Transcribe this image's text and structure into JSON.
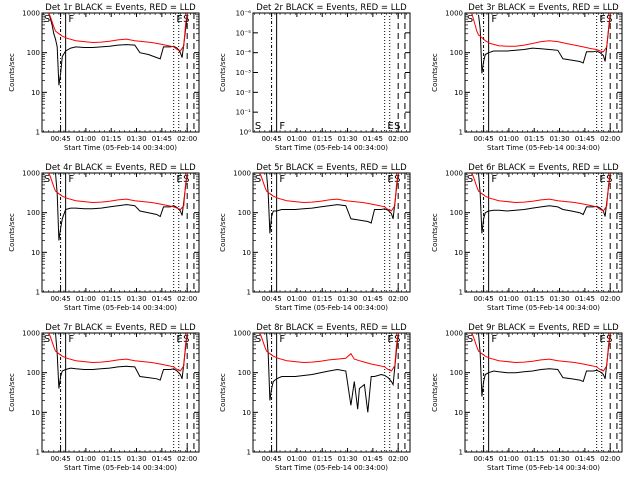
{
  "page": {
    "background": "#ffffff",
    "colors": {
      "events": "#000000",
      "lld": "#ff0000",
      "axis": "#000000"
    }
  },
  "axes": {
    "xticks": [
      "00:45",
      "01:00",
      "01:15",
      "01:30",
      "01:45",
      "02:00"
    ],
    "xlabel": "Start Time (05-Feb-14 00:34:00)",
    "ylabel": "Counts/sec",
    "yticks_log": [
      "1",
      "10",
      "100",
      "1000"
    ],
    "yticks_empty": [
      "10⁰",
      "10⁻¹",
      "10⁻²",
      "10⁻³",
      "10⁻⁴",
      "10⁻⁵",
      "10⁻⁶"
    ]
  },
  "markers": {
    "S": "S",
    "F": "F",
    "E": "E"
  },
  "chart_data": [
    {
      "type": "line",
      "title": "Det 1r BLACK = Events, RED = LLD",
      "ylabel": "Counts/sec",
      "xlabel": "Start Time (05-Feb-14 00:34:00)",
      "yscale": "log",
      "ylim": [
        1,
        1000
      ],
      "xlim_minutes": [
        0,
        93
      ],
      "series": [
        {
          "name": "Events",
          "x": [
            4,
            6,
            7,
            8,
            9,
            10,
            11,
            12,
            14,
            17,
            20,
            25,
            30,
            35,
            40,
            45,
            50,
            55,
            58,
            63,
            68,
            70,
            72,
            76,
            78,
            80,
            82,
            83,
            86
          ],
          "y": [
            1000,
            500,
            300,
            220,
            140,
            15,
            30,
            80,
            110,
            130,
            140,
            135,
            135,
            140,
            145,
            155,
            160,
            155,
            100,
            90,
            75,
            70,
            140,
            140,
            145,
            130,
            100,
            75,
            800
          ]
        },
        {
          "name": "LLD",
          "x": [
            4,
            5,
            6,
            7,
            8,
            10,
            12,
            15,
            20,
            25,
            30,
            35,
            40,
            45,
            50,
            55,
            60,
            65,
            70,
            75,
            78,
            80,
            82,
            84,
            85,
            86
          ],
          "y": [
            1000,
            800,
            600,
            450,
            350,
            300,
            260,
            230,
            200,
            190,
            180,
            185,
            195,
            210,
            220,
            200,
            190,
            180,
            165,
            150,
            140,
            120,
            110,
            150,
            500,
            1000
          ]
        }
      ]
    },
    {
      "type": "line",
      "title": "Det 2r BLACK = Events, RED = LLD",
      "ylabel": "Counts/sec",
      "xlabel": "Start Time (05-Feb-14 00:34:00)",
      "yscale": "log",
      "ylim": [
        1e-06,
        1
      ],
      "xlim_minutes": [
        0,
        93
      ],
      "series": []
    },
    {
      "type": "line",
      "title": "Det 3r BLACK = Events, RED = LLD",
      "ylabel": "Counts/sec",
      "xlabel": "Start Time (05-Feb-14 00:34:00)",
      "yscale": "log",
      "ylim": [
        1,
        1000
      ],
      "xlim_minutes": [
        0,
        93
      ],
      "series": [
        {
          "name": "Events",
          "x": [
            8,
            9,
            10,
            11,
            12,
            14,
            17,
            20,
            25,
            30,
            35,
            40,
            45,
            50,
            55,
            58,
            63,
            68,
            70,
            72,
            76,
            78,
            80,
            82,
            83,
            86
          ],
          "y": [
            900,
            400,
            30,
            60,
            90,
            100,
            110,
            110,
            110,
            115,
            120,
            130,
            125,
            120,
            115,
            70,
            65,
            60,
            55,
            105,
            105,
            110,
            100,
            85,
            60,
            900
          ]
        },
        {
          "name": "LLD",
          "x": [
            4,
            5,
            6,
            7,
            8,
            10,
            12,
            15,
            20,
            25,
            30,
            35,
            40,
            45,
            50,
            55,
            60,
            65,
            70,
            75,
            78,
            80,
            82,
            84,
            85,
            86
          ],
          "y": [
            1000,
            700,
            500,
            350,
            280,
            240,
            200,
            170,
            150,
            145,
            145,
            155,
            170,
            190,
            200,
            190,
            170,
            155,
            140,
            125,
            120,
            110,
            105,
            140,
            400,
            1000
          ]
        }
      ]
    },
    {
      "type": "line",
      "title": "Det 4r BLACK = Events, RED = LLD",
      "ylabel": "Counts/sec",
      "xlabel": "Start Time (05-Feb-14 00:34:00)",
      "yscale": "log",
      "ylim": [
        1,
        1000
      ],
      "xlim_minutes": [
        0,
        93
      ],
      "series": [
        {
          "name": "Events",
          "x": [
            8,
            9,
            10,
            11,
            12,
            14,
            17,
            20,
            25,
            30,
            35,
            40,
            45,
            50,
            55,
            58,
            63,
            68,
            70,
            72,
            76,
            78,
            80,
            82,
            83,
            86
          ],
          "y": [
            1000,
            300,
            20,
            40,
            70,
            120,
            130,
            130,
            125,
            125,
            130,
            140,
            150,
            160,
            150,
            110,
            100,
            90,
            80,
            140,
            140,
            150,
            135,
            110,
            85,
            1000
          ]
        },
        {
          "name": "LLD",
          "x": [
            4,
            5,
            6,
            7,
            8,
            10,
            12,
            15,
            20,
            25,
            30,
            35,
            40,
            45,
            50,
            55,
            60,
            65,
            70,
            75,
            78,
            80,
            82,
            84,
            85,
            86
          ],
          "y": [
            1000,
            800,
            600,
            450,
            350,
            300,
            260,
            230,
            200,
            190,
            180,
            185,
            195,
            210,
            220,
            200,
            190,
            180,
            165,
            150,
            140,
            130,
            120,
            150,
            500,
            1000
          ]
        }
      ]
    },
    {
      "type": "line",
      "title": "Det 5r BLACK = Events, RED = LLD",
      "ylabel": "Counts/sec",
      "xlabel": "Start Time (05-Feb-14 00:34:00)",
      "yscale": "log",
      "ylim": [
        1,
        1000
      ],
      "xlim_minutes": [
        0,
        93
      ],
      "series": [
        {
          "name": "Events",
          "x": [
            8,
            9,
            10,
            11,
            12,
            14,
            17,
            20,
            25,
            30,
            35,
            40,
            45,
            50,
            55,
            58,
            63,
            68,
            70,
            72,
            76,
            78,
            80,
            82,
            83,
            86
          ],
          "y": [
            1000,
            300,
            30,
            80,
            110,
            110,
            120,
            120,
            120,
            125,
            130,
            140,
            150,
            160,
            150,
            70,
            65,
            60,
            55,
            120,
            120,
            125,
            115,
            95,
            70,
            1000
          ]
        },
        {
          "name": "LLD",
          "x": [
            4,
            5,
            6,
            7,
            8,
            10,
            12,
            15,
            20,
            25,
            30,
            35,
            40,
            45,
            50,
            55,
            60,
            65,
            70,
            75,
            78,
            80,
            82,
            84,
            85,
            86
          ],
          "y": [
            1000,
            800,
            600,
            450,
            350,
            300,
            260,
            230,
            200,
            190,
            180,
            185,
            195,
            210,
            220,
            200,
            190,
            180,
            165,
            150,
            140,
            120,
            110,
            150,
            500,
            1000
          ]
        }
      ]
    },
    {
      "type": "line",
      "title": "Det 6r BLACK = Events, RED = LLD",
      "ylabel": "Counts/sec",
      "xlabel": "Start Time (05-Feb-14 00:34:00)",
      "yscale": "log",
      "ylim": [
        1,
        1000
      ],
      "xlim_minutes": [
        0,
        93
      ],
      "series": [
        {
          "name": "Events",
          "x": [
            8,
            9,
            10,
            11,
            12,
            14,
            17,
            20,
            25,
            30,
            35,
            40,
            45,
            50,
            55,
            58,
            63,
            68,
            70,
            72,
            76,
            78,
            80,
            82,
            83,
            86
          ],
          "y": [
            1000,
            300,
            30,
            70,
            100,
            110,
            115,
            115,
            110,
            115,
            120,
            130,
            140,
            150,
            140,
            120,
            110,
            100,
            90,
            140,
            140,
            145,
            130,
            110,
            80,
            1000
          ]
        },
        {
          "name": "LLD",
          "x": [
            4,
            5,
            6,
            7,
            8,
            10,
            12,
            15,
            20,
            25,
            30,
            35,
            40,
            45,
            50,
            55,
            60,
            65,
            70,
            75,
            78,
            80,
            82,
            84,
            85,
            86
          ],
          "y": [
            1000,
            800,
            600,
            450,
            350,
            300,
            260,
            230,
            200,
            190,
            180,
            185,
            195,
            210,
            220,
            200,
            190,
            180,
            165,
            150,
            140,
            120,
            110,
            150,
            500,
            1000
          ]
        }
      ]
    },
    {
      "type": "line",
      "title": "Det 7r BLACK = Events, RED = LLD",
      "ylabel": "Counts/sec",
      "xlabel": "Start Time (05-Feb-14 00:34:00)",
      "yscale": "log",
      "ylim": [
        1,
        1000
      ],
      "xlim_minutes": [
        0,
        93
      ],
      "series": [
        {
          "name": "Events",
          "x": [
            8,
            9,
            10,
            11,
            12,
            14,
            17,
            20,
            25,
            30,
            35,
            40,
            45,
            50,
            55,
            58,
            63,
            68,
            70,
            72,
            76,
            78,
            80,
            82,
            83,
            86
          ],
          "y": [
            1000,
            300,
            40,
            80,
            110,
            120,
            130,
            125,
            120,
            120,
            125,
            130,
            140,
            145,
            140,
            80,
            75,
            70,
            65,
            120,
            120,
            125,
            110,
            90,
            70,
            1000
          ]
        },
        {
          "name": "LLD",
          "x": [
            4,
            5,
            6,
            7,
            8,
            10,
            12,
            15,
            20,
            25,
            30,
            35,
            40,
            45,
            50,
            55,
            60,
            65,
            70,
            75,
            78,
            80,
            82,
            84,
            85,
            86
          ],
          "y": [
            1000,
            800,
            600,
            450,
            350,
            300,
            260,
            230,
            200,
            190,
            180,
            185,
            195,
            210,
            220,
            200,
            190,
            180,
            165,
            150,
            140,
            120,
            110,
            150,
            500,
            1000
          ]
        }
      ]
    },
    {
      "type": "line",
      "title": "Det 8r BLACK = Events, RED = LLD",
      "ylabel": "Counts/sec",
      "xlabel": "Start Time (05-Feb-14 00:34:00)",
      "yscale": "log",
      "ylim": [
        1,
        1000
      ],
      "xlim_minutes": [
        0,
        93
      ],
      "series": [
        {
          "name": "Events",
          "x": [
            8,
            9,
            10,
            11,
            12,
            14,
            17,
            20,
            25,
            30,
            35,
            40,
            45,
            50,
            55,
            58,
            60,
            62,
            63,
            66,
            68,
            70,
            72,
            76,
            78,
            80,
            82,
            83,
            86
          ],
          "y": [
            1000,
            300,
            20,
            40,
            60,
            70,
            80,
            80,
            80,
            85,
            90,
            100,
            110,
            120,
            110,
            15,
            60,
            12,
            40,
            50,
            10,
            80,
            80,
            90,
            85,
            75,
            60,
            50,
            1000
          ]
        },
        {
          "name": "LLD",
          "x": [
            4,
            5,
            6,
            7,
            8,
            10,
            12,
            15,
            20,
            25,
            30,
            35,
            40,
            45,
            50,
            55,
            58,
            60,
            63,
            65,
            70,
            75,
            78,
            80,
            82,
            84,
            85,
            86
          ],
          "y": [
            1000,
            800,
            600,
            450,
            350,
            300,
            260,
            230,
            200,
            190,
            180,
            185,
            195,
            210,
            220,
            230,
            300,
            220,
            200,
            190,
            165,
            150,
            140,
            120,
            110,
            150,
            500,
            1000
          ]
        }
      ]
    },
    {
      "type": "line",
      "title": "Det 9r BLACK = Events, RED = LLD",
      "ylabel": "Counts/sec",
      "xlabel": "Start Time (05-Feb-14 00:34:00)",
      "yscale": "log",
      "ylim": [
        1,
        1000
      ],
      "xlim_minutes": [
        0,
        93
      ],
      "series": [
        {
          "name": "Events",
          "x": [
            8,
            9,
            10,
            11,
            12,
            14,
            17,
            20,
            25,
            30,
            35,
            40,
            45,
            50,
            55,
            58,
            63,
            68,
            70,
            72,
            76,
            78,
            80,
            82,
            83,
            86
          ],
          "y": [
            1000,
            300,
            25,
            60,
            90,
            100,
            110,
            105,
            100,
            100,
            105,
            110,
            120,
            125,
            120,
            75,
            70,
            65,
            60,
            110,
            110,
            115,
            105,
            90,
            70,
            1000
          ]
        },
        {
          "name": "LLD",
          "x": [
            4,
            5,
            6,
            7,
            8,
            10,
            12,
            15,
            20,
            25,
            30,
            35,
            40,
            45,
            50,
            55,
            60,
            65,
            70,
            75,
            78,
            80,
            82,
            84,
            85,
            86
          ],
          "y": [
            1000,
            800,
            600,
            450,
            350,
            300,
            260,
            230,
            200,
            190,
            180,
            185,
            195,
            210,
            220,
            200,
            190,
            180,
            165,
            150,
            140,
            120,
            110,
            150,
            500,
            1000
          ]
        }
      ]
    }
  ]
}
